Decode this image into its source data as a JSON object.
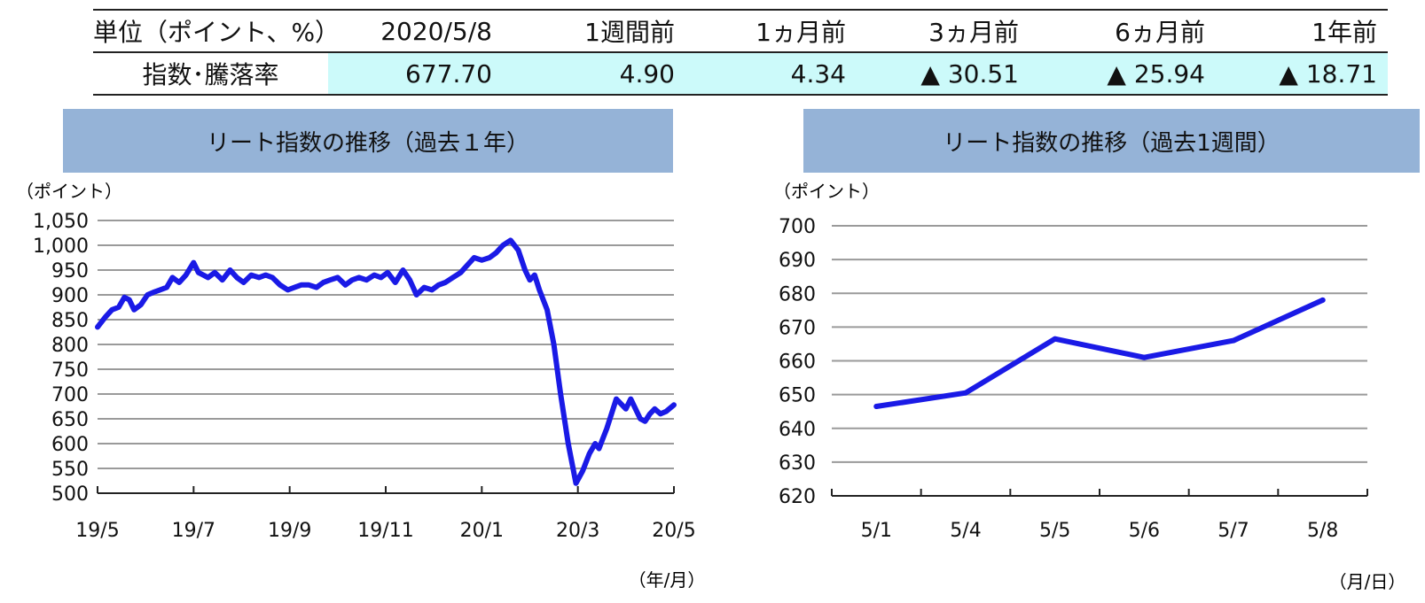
{
  "summary": {
    "headers": [
      "単位（ポイント、%）",
      "2020/5/8",
      "1週間前",
      "1ヵ月前",
      "3ヵ月前",
      "6ヵ月前",
      "1年前"
    ],
    "row_label": "指数･騰落率",
    "values": [
      "677.70",
      "4.90",
      "4.34",
      "▲ 30.51",
      "▲ 25.94",
      "▲ 18.71"
    ]
  },
  "chart_data": [
    {
      "type": "line",
      "title": "リート指数の推移（過去１年）",
      "ylabel": "（ポイント）",
      "xlabel": "（年/月）",
      "ylim": [
        500,
        1050
      ],
      "yticks": [
        "1,050",
        "1,000",
        "950",
        "900",
        "850",
        "800",
        "750",
        "700",
        "650",
        "600",
        "550",
        "500"
      ],
      "xticks": [
        "19/5",
        "19/7",
        "19/9",
        "19/11",
        "20/1",
        "20/3",
        "20/5"
      ],
      "grid": true,
      "color": "#1a1ae6",
      "series": [
        {
          "x": [
            0,
            0.08,
            0.15,
            0.22,
            0.28,
            0.33,
            0.38,
            0.45,
            0.52,
            0.58,
            0.65,
            0.72,
            0.78,
            0.85,
            0.92,
            1.0,
            1.05,
            1.1,
            1.15,
            1.22,
            1.3,
            1.38,
            1.45,
            1.52,
            1.6,
            1.68,
            1.75,
            1.82,
            1.9,
            1.98,
            2.05,
            2.12,
            2.2,
            2.28,
            2.35,
            2.42,
            2.5,
            2.58,
            2.65,
            2.72,
            2.8,
            2.88,
            2.95,
            3.02,
            3.1,
            3.18,
            3.25,
            3.32,
            3.4,
            3.48,
            3.55,
            3.62,
            3.7,
            3.78,
            3.85,
            3.92,
            4.0,
            4.08,
            4.15,
            4.22,
            4.3,
            4.38,
            4.45,
            4.5,
            4.55,
            4.6,
            4.68,
            4.75,
            4.82,
            4.9,
            4.98,
            5.05,
            5.12,
            5.18,
            5.22,
            5.26,
            5.3,
            5.35,
            5.4,
            5.45,
            5.5,
            5.55,
            5.6,
            5.65,
            5.7,
            5.75,
            5.8,
            5.86,
            5.92,
            6.0
          ],
          "y": [
            835,
            855,
            870,
            875,
            895,
            890,
            870,
            880,
            900,
            905,
            910,
            915,
            935,
            925,
            940,
            965,
            945,
            940,
            935,
            945,
            930,
            950,
            935,
            925,
            940,
            935,
            940,
            935,
            920,
            910,
            915,
            920,
            920,
            915,
            925,
            930,
            935,
            920,
            930,
            935,
            930,
            940,
            935,
            945,
            925,
            950,
            930,
            900,
            915,
            910,
            920,
            925,
            935,
            945,
            960,
            975,
            970,
            975,
            985,
            1000,
            1010,
            990,
            950,
            930,
            940,
            910,
            870,
            800,
            700,
            600,
            520,
            545,
            580,
            600,
            590,
            610,
            630,
            660,
            690,
            680,
            670,
            690,
            670,
            650,
            645,
            660,
            670,
            660,
            665,
            678
          ]
        }
      ]
    },
    {
      "type": "line",
      "title": "リート指数の推移（過去1週間）",
      "ylabel": "（ポイント）",
      "xlabel": "（月/日）",
      "ylim": [
        620,
        700
      ],
      "yticks": [
        "700",
        "690",
        "680",
        "670",
        "660",
        "650",
        "640",
        "630",
        "620"
      ],
      "categories": [
        "5/1",
        "5/4",
        "5/5",
        "5/6",
        "5/7",
        "5/8"
      ],
      "grid": true,
      "color": "#1a1ae6",
      "series": [
        {
          "values": [
            646.5,
            650.5,
            666.5,
            661.0,
            666.0,
            678.0
          ]
        }
      ]
    }
  ]
}
